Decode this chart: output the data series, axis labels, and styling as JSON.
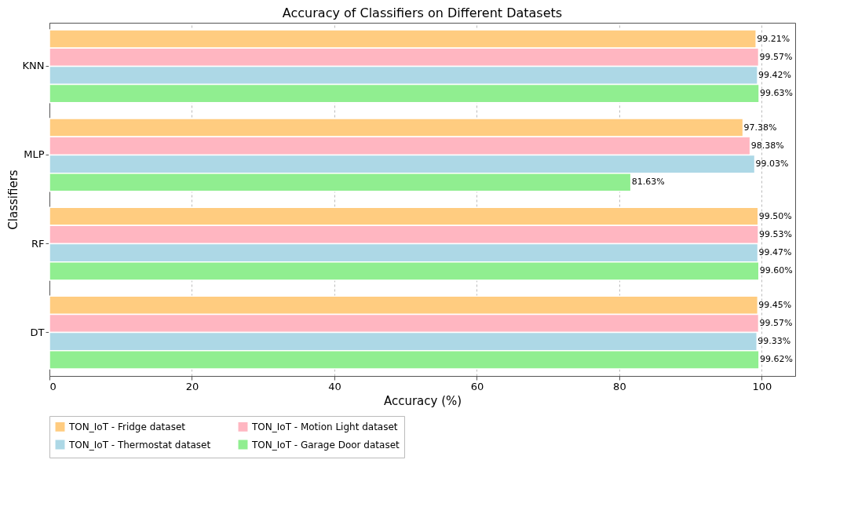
{
  "chart_data": {
    "type": "bar",
    "orientation": "horizontal",
    "title": "Accuracy of Classifiers on Different Datasets",
    "xlabel": "Accuracy (%)",
    "ylabel": "Classifiers",
    "categories": [
      "KNN",
      "MLP",
      "RF",
      "DT"
    ],
    "series": [
      {
        "name": "TON_IoT - Fridge dataset",
        "color": "#ffcc80",
        "values": [
          99.21,
          97.38,
          99.5,
          99.45
        ],
        "value_labels": [
          "99.21%",
          "97.38%",
          "99.50%",
          "99.45%"
        ]
      },
      {
        "name": "TON_IoT - Motion Light dataset",
        "color": "#ffb6c1",
        "values": [
          99.57,
          98.38,
          99.53,
          99.57
        ],
        "value_labels": [
          "99.57%",
          "98.38%",
          "99.53%",
          "99.57%"
        ]
      },
      {
        "name": "TON_IoT - Thermostat dataset",
        "color": "#add8e6",
        "values": [
          99.42,
          99.03,
          99.47,
          99.33
        ],
        "value_labels": [
          "99.42%",
          "99.03%",
          "99.47%",
          "99.33%"
        ]
      },
      {
        "name": "TON_IoT - Garage Door dataset",
        "color": "#90ee90",
        "values": [
          99.63,
          81.63,
          99.6,
          99.62
        ],
        "value_labels": [
          "99.63%",
          "81.63%",
          "99.60%",
          "99.62%"
        ]
      }
    ],
    "xlim": [
      0,
      104.7
    ],
    "xticks": [
      0,
      20,
      40,
      60,
      80,
      100
    ],
    "grid": "x",
    "legend": "bottom"
  }
}
